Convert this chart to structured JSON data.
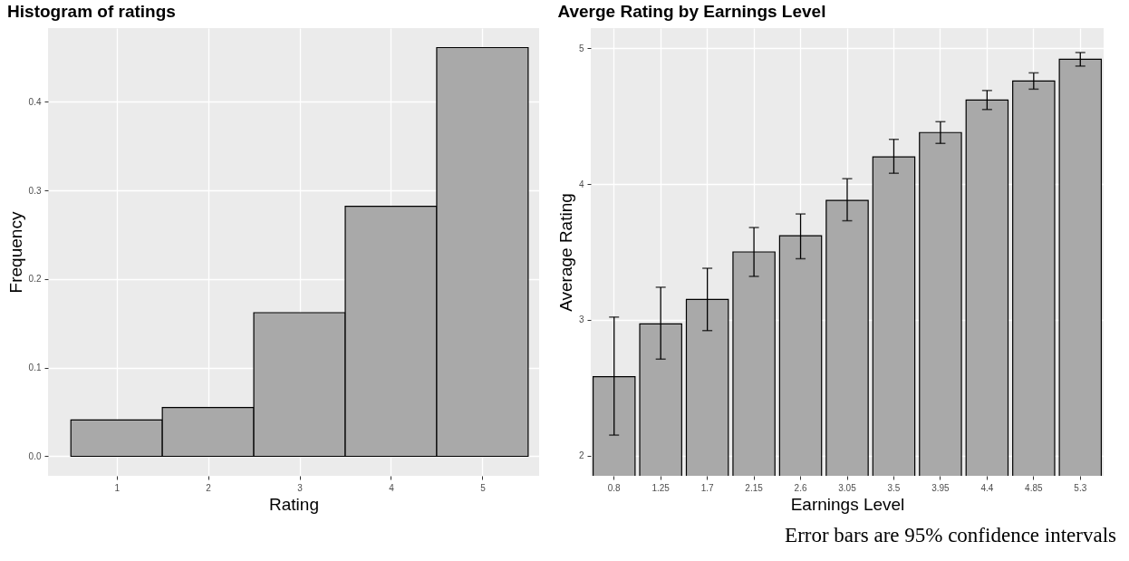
{
  "chart_data": [
    {
      "type": "histogram",
      "title": "Histogram of ratings",
      "xlabel": "Rating",
      "ylabel": "Frequency",
      "bins": [
        0.5,
        1.5,
        2.5,
        3.5,
        4.5,
        5.5
      ],
      "values": [
        0.041,
        0.055,
        0.162,
        0.282,
        0.461
      ],
      "color": "#a9a9a9",
      "xlim": [
        0.25,
        5.62
      ],
      "xticks": [
        1,
        2,
        3,
        4,
        5
      ],
      "ylim": [
        -0.022,
        0.483
      ],
      "yticks": [
        {
          "value": 0,
          "label": "0.0"
        },
        0.1,
        0.2,
        0.3,
        0.4
      ],
      "grid": true
    },
    {
      "type": "bar",
      "title": "Averge Rating by Earnings Level",
      "xlabel": "Earnings Level",
      "ylabel": "Average Rating",
      "categories": [
        "0.8",
        "1.25",
        "1.7",
        "2.15",
        "2.6",
        "3.05",
        "3.5",
        "3.95",
        "4.4",
        "4.85",
        "5.3"
      ],
      "values": [
        2.58,
        2.97,
        3.15,
        3.5,
        3.62,
        3.88,
        4.2,
        4.38,
        4.62,
        4.76,
        4.92
      ],
      "errors": [
        [
          2.15,
          3.02
        ],
        [
          2.71,
          3.24
        ],
        [
          2.92,
          3.38
        ],
        [
          3.32,
          3.68
        ],
        [
          3.45,
          3.78
        ],
        [
          3.73,
          4.04
        ],
        [
          4.08,
          4.33
        ],
        [
          4.3,
          4.46
        ],
        [
          4.55,
          4.69
        ],
        [
          4.7,
          4.82
        ],
        [
          4.87,
          4.97
        ]
      ],
      "color": "#a9a9a9",
      "ylim": [
        1.85,
        5.15
      ],
      "yticks": [
        2,
        3,
        4,
        5
      ],
      "grid": true,
      "annotations": [
        "Error bars are 95% confidence intervals"
      ]
    }
  ]
}
